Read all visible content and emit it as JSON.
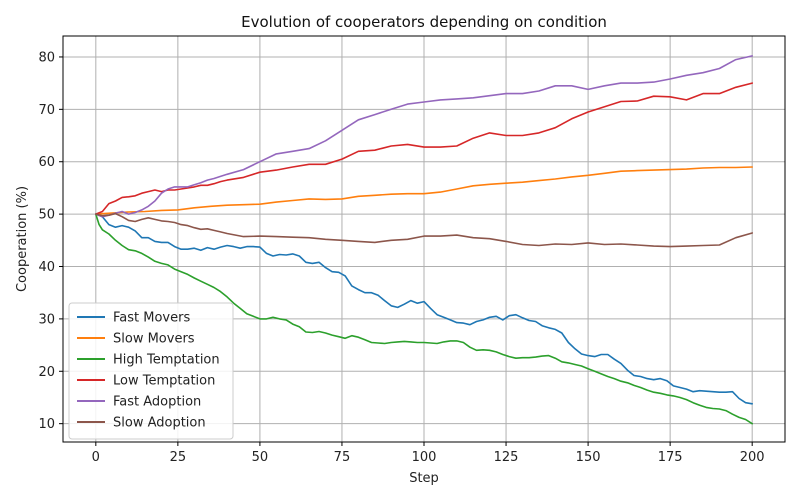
{
  "chart_data": {
    "type": "line",
    "title": "Evolution of cooperators depending on condition",
    "xlabel": "Step",
    "ylabel": "Cooperation (%)",
    "xlim": [
      -10,
      210
    ],
    "ylim": [
      6.5,
      84
    ],
    "xticks": [
      0,
      25,
      50,
      75,
      100,
      125,
      150,
      175,
      200
    ],
    "yticks": [
      10,
      20,
      30,
      40,
      50,
      60,
      70,
      80
    ],
    "grid": true,
    "legend_position": "lower-left",
    "series": [
      {
        "name": "Fast Movers",
        "color": "#1f77b4",
        "x": [
          0,
          2,
          4,
          6,
          8,
          10,
          12,
          14,
          16,
          18,
          20,
          22,
          24,
          26,
          28,
          30,
          32,
          34,
          36,
          38,
          40,
          42,
          44,
          46,
          48,
          50,
          52,
          54,
          56,
          58,
          60,
          62,
          64,
          66,
          68,
          70,
          72,
          74,
          76,
          78,
          80,
          82,
          84,
          86,
          88,
          90,
          92,
          94,
          96,
          98,
          100,
          102,
          104,
          106,
          108,
          110,
          112,
          114,
          116,
          118,
          120,
          122,
          124,
          126,
          128,
          130,
          132,
          134,
          136,
          138,
          140,
          142,
          144,
          146,
          148,
          150,
          152,
          154,
          156,
          158,
          160,
          162,
          164,
          166,
          168,
          170,
          172,
          174,
          176,
          178,
          180,
          182,
          184,
          186,
          188,
          190,
          192,
          194,
          196,
          198,
          200
        ],
        "values": [
          50,
          49.5,
          48,
          47.5,
          47.8,
          47.5,
          46.8,
          45.5,
          45.5,
          44.8,
          44.6,
          44.6,
          43.8,
          43.3,
          43.3,
          43.5,
          43.1,
          43.6,
          43.3,
          43.7,
          44,
          43.8,
          43.5,
          43.8,
          43.8,
          43.7,
          42.5,
          42,
          42.3,
          42.2,
          42.4,
          42,
          40.8,
          40.6,
          40.8,
          39.8,
          39,
          38.9,
          38.2,
          36.3,
          35.6,
          35,
          35,
          34.5,
          33.5,
          32.5,
          32.2,
          32.8,
          33.5,
          33,
          33.3,
          32,
          30.8,
          30.3,
          29.8,
          29.3,
          29.2,
          28.9,
          29.5,
          29.8,
          30.3,
          30.5,
          29.8,
          30.6,
          30.8,
          30.2,
          29.7,
          29.5,
          28.7,
          28.3,
          28,
          27.3,
          25.5,
          24.3,
          23.3,
          23,
          22.8,
          23.2,
          23.2,
          22.3,
          21.5,
          20.2,
          19.2,
          19,
          18.6,
          18.4,
          18.6,
          18.2,
          17.2,
          16.9,
          16.6,
          16.1,
          16.3,
          16.2,
          16.1,
          16,
          16,
          16.1,
          14.8,
          14,
          13.8
        ]
      },
      {
        "name": "Slow Movers",
        "color": "#ff7f0e",
        "x": [
          0,
          5,
          10,
          15,
          20,
          25,
          30,
          35,
          40,
          45,
          50,
          55,
          60,
          65,
          70,
          75,
          80,
          85,
          90,
          95,
          100,
          105,
          110,
          115,
          120,
          125,
          130,
          135,
          140,
          145,
          150,
          155,
          160,
          165,
          170,
          175,
          180,
          185,
          190,
          195,
          200
        ],
        "values": [
          50,
          50.2,
          50.4,
          50.5,
          50.7,
          50.8,
          51.2,
          51.5,
          51.7,
          51.8,
          51.9,
          52.3,
          52.6,
          52.9,
          52.8,
          52.9,
          53.4,
          53.6,
          53.8,
          53.9,
          53.9,
          54.2,
          54.8,
          55.4,
          55.7,
          55.9,
          56.1,
          56.4,
          56.7,
          57.1,
          57.4,
          57.8,
          58.2,
          58.3,
          58.4,
          58.5,
          58.6,
          58.8,
          58.9,
          58.9,
          59
        ]
      },
      {
        "name": "High Temptation",
        "color": "#2ca02c",
        "x": [
          0,
          1,
          2,
          4,
          6,
          8,
          10,
          12,
          14,
          16,
          18,
          20,
          22,
          24,
          26,
          28,
          30,
          32,
          34,
          36,
          38,
          40,
          42,
          44,
          46,
          48,
          50,
          52,
          54,
          56,
          58,
          60,
          62,
          64,
          66,
          68,
          70,
          72,
          74,
          76,
          78,
          80,
          82,
          84,
          86,
          88,
          90,
          92,
          94,
          96,
          98,
          100,
          102,
          104,
          106,
          108,
          110,
          112,
          114,
          116,
          118,
          120,
          122,
          124,
          126,
          128,
          130,
          132,
          134,
          136,
          138,
          140,
          142,
          144,
          146,
          148,
          150,
          152,
          154,
          156,
          158,
          160,
          162,
          164,
          166,
          168,
          170,
          172,
          174,
          176,
          178,
          180,
          182,
          184,
          186,
          188,
          190,
          192,
          194,
          196,
          198,
          200
        ],
        "values": [
          50,
          48,
          47,
          46.2,
          45,
          44,
          43.2,
          43,
          42.5,
          41.8,
          41,
          40.6,
          40.3,
          39.5,
          39,
          38.5,
          37.8,
          37.2,
          36.6,
          36,
          35.2,
          34.2,
          33,
          32,
          31,
          30.5,
          30,
          30,
          30.3,
          30,
          29.8,
          29,
          28.5,
          27.5,
          27.4,
          27.6,
          27.3,
          26.9,
          26.6,
          26.3,
          26.8,
          26.5,
          26,
          25.5,
          25.4,
          25.3,
          25.5,
          25.6,
          25.7,
          25.6,
          25.5,
          25.5,
          25.4,
          25.3,
          25.6,
          25.8,
          25.8,
          25.5,
          24.6,
          24,
          24.1,
          24,
          23.7,
          23.2,
          22.8,
          22.5,
          22.6,
          22.6,
          22.7,
          22.9,
          23,
          22.5,
          21.8,
          21.6,
          21.3,
          21,
          20.5,
          20,
          19.5,
          19,
          18.6,
          18.1,
          17.8,
          17.3,
          16.9,
          16.4,
          16,
          15.8,
          15.5,
          15.3,
          15,
          14.6,
          14,
          13.5,
          13.1,
          12.9,
          12.8,
          12.5,
          11.8,
          11.2,
          10.8,
          10
        ]
      },
      {
        "name": "Low Temptation",
        "color": "#d62728",
        "x": [
          0,
          2,
          4,
          6,
          8,
          10,
          12,
          14,
          16,
          18,
          20,
          22,
          24,
          26,
          28,
          30,
          32,
          34,
          36,
          38,
          40,
          45,
          50,
          55,
          60,
          65,
          70,
          75,
          80,
          85,
          90,
          95,
          100,
          105,
          110,
          115,
          120,
          125,
          130,
          135,
          140,
          145,
          150,
          155,
          160,
          165,
          170,
          175,
          180,
          185,
          190,
          195,
          200
        ],
        "values": [
          50,
          50.5,
          52,
          52.5,
          53.2,
          53.3,
          53.5,
          54,
          54.3,
          54.6,
          54.3,
          54.6,
          54.6,
          54.8,
          55,
          55.2,
          55.5,
          55.5,
          55.8,
          56.2,
          56.5,
          57,
          58,
          58.4,
          59,
          59.5,
          59.5,
          60.5,
          62,
          62.2,
          63,
          63.3,
          62.8,
          62.8,
          63,
          64.5,
          65.5,
          65,
          65,
          65.5,
          66.5,
          68.2,
          69.5,
          70.5,
          71.5,
          71.6,
          72.5,
          72.4,
          71.8,
          73,
          73,
          74.2,
          75
        ]
      },
      {
        "name": "Fast Adoption",
        "color": "#9467bd",
        "x": [
          0,
          2,
          4,
          6,
          8,
          10,
          12,
          14,
          16,
          18,
          20,
          22,
          24,
          26,
          28,
          30,
          32,
          34,
          36,
          38,
          40,
          45,
          50,
          55,
          60,
          65,
          70,
          75,
          80,
          85,
          90,
          95,
          100,
          105,
          110,
          115,
          120,
          125,
          130,
          135,
          140,
          145,
          150,
          155,
          160,
          165,
          170,
          175,
          180,
          185,
          190,
          195,
          200
        ],
        "values": [
          50,
          49.5,
          49.8,
          50.2,
          50.5,
          50,
          50.3,
          50.8,
          51.5,
          52.5,
          54,
          54.8,
          55.2,
          55.2,
          55.2,
          55.6,
          56,
          56.5,
          56.8,
          57.2,
          57.6,
          58.5,
          60,
          61.5,
          62,
          62.5,
          64,
          66,
          68,
          69,
          70,
          71,
          71.4,
          71.8,
          72,
          72.2,
          72.6,
          73,
          73,
          73.5,
          74.5,
          74.5,
          73.8,
          74.5,
          75,
          75,
          75.2,
          75.8,
          76.5,
          77,
          77.8,
          79.5,
          80.2
        ]
      },
      {
        "name": "Slow Adoption",
        "color": "#8c564b",
        "x": [
          0,
          2,
          4,
          6,
          8,
          10,
          12,
          14,
          16,
          18,
          20,
          22,
          24,
          26,
          28,
          30,
          32,
          34,
          36,
          38,
          40,
          45,
          50,
          55,
          60,
          65,
          70,
          75,
          80,
          85,
          90,
          95,
          100,
          105,
          110,
          115,
          120,
          125,
          130,
          135,
          140,
          145,
          150,
          155,
          160,
          165,
          170,
          175,
          180,
          185,
          190,
          195,
          200
        ],
        "values": [
          50,
          49.7,
          49.8,
          50.1,
          49.5,
          48.8,
          48.6,
          49,
          49.3,
          49,
          48.7,
          48.6,
          48.4,
          48,
          47.8,
          47.4,
          47.1,
          47.2,
          46.9,
          46.6,
          46.3,
          45.7,
          45.8,
          45.7,
          45.6,
          45.5,
          45.2,
          45,
          44.8,
          44.6,
          45,
          45.2,
          45.8,
          45.8,
          46,
          45.5,
          45.3,
          44.8,
          44.2,
          44,
          44.3,
          44.2,
          44.5,
          44.2,
          44.3,
          44.1,
          43.9,
          43.8,
          43.9,
          44,
          44.1,
          45.5,
          46.4
        ]
      }
    ]
  }
}
